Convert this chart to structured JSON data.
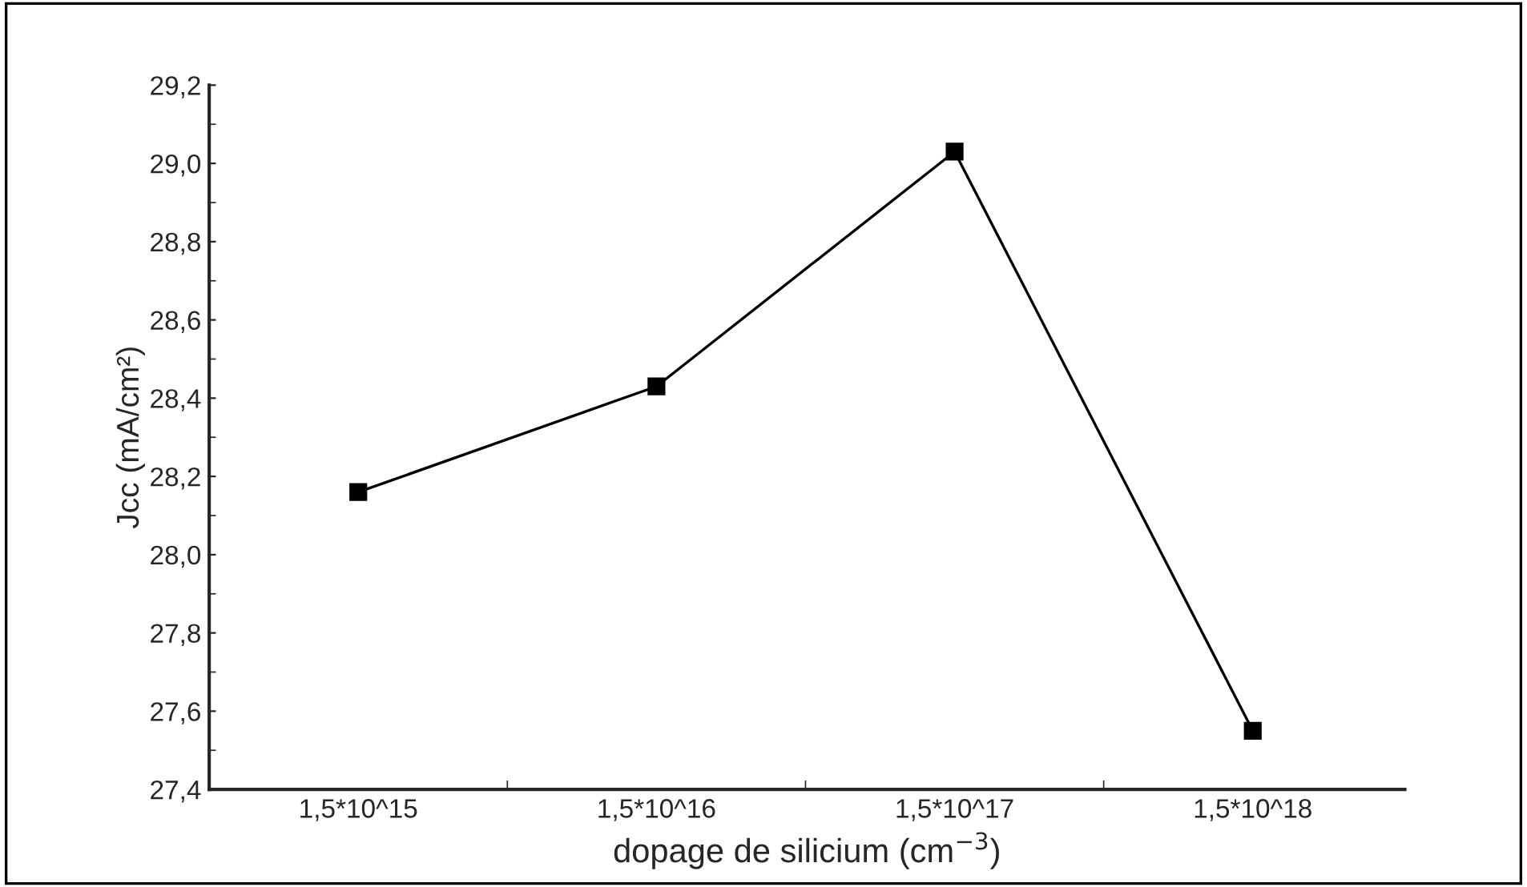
{
  "chart_data": {
    "type": "line",
    "xlabel": "dopage de silicium (cm$^{−3}$)",
    "ylabel": "Jcc (mA/cm²)",
    "categories": [
      "1,5*10^15",
      "1,5*10^16",
      "1,5*10^17",
      "1,5*10^18"
    ],
    "series": [
      {
        "color": "#000000",
        "values": [
          28.16,
          28.43,
          29.03,
          27.55
        ]
      }
    ],
    "ylim": [
      27.4,
      29.2
    ],
    "yticks": [
      {
        "value": 27.4,
        "label": "27,4"
      },
      {
        "value": 27.6,
        "label": "27,6"
      },
      {
        "value": 27.8,
        "label": "27,8"
      },
      {
        "value": 28.0,
        "label": "28,0"
      },
      {
        "value": 28.2,
        "label": "28,2"
      },
      {
        "value": 28.4,
        "label": "28,4"
      },
      {
        "value": 28.6,
        "label": "28,6"
      },
      {
        "value": 28.8,
        "label": "28,8"
      },
      {
        "value": 29.0,
        "label": "29,0"
      },
      {
        "value": 29.2,
        "label": "29,2"
      }
    ],
    "marker": "square",
    "line_style": "solid",
    "grid": false,
    "legend": false
  }
}
